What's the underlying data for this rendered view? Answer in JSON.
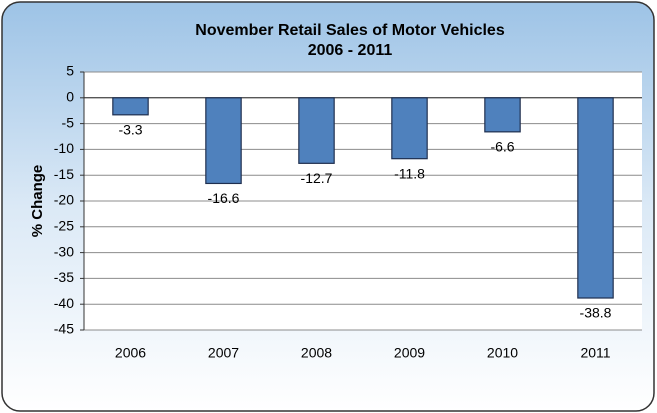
{
  "chart_data": {
    "type": "bar",
    "title": "November Retail Sales of Motor Vehicles",
    "subtitle": "2006 - 2011",
    "y_label": "% Change",
    "categories": [
      "2006",
      "2007",
      "2008",
      "2009",
      "2010",
      "2011"
    ],
    "values": [
      -3.3,
      -16.6,
      -12.7,
      -11.8,
      -6.6,
      -38.8
    ],
    "color": "#4f81bd",
    "ylim": [
      -45,
      5
    ],
    "yticks": [
      5,
      0,
      -5,
      -10,
      -15,
      -20,
      -25,
      -30,
      -35,
      -40,
      -45
    ],
    "grid": true
  }
}
